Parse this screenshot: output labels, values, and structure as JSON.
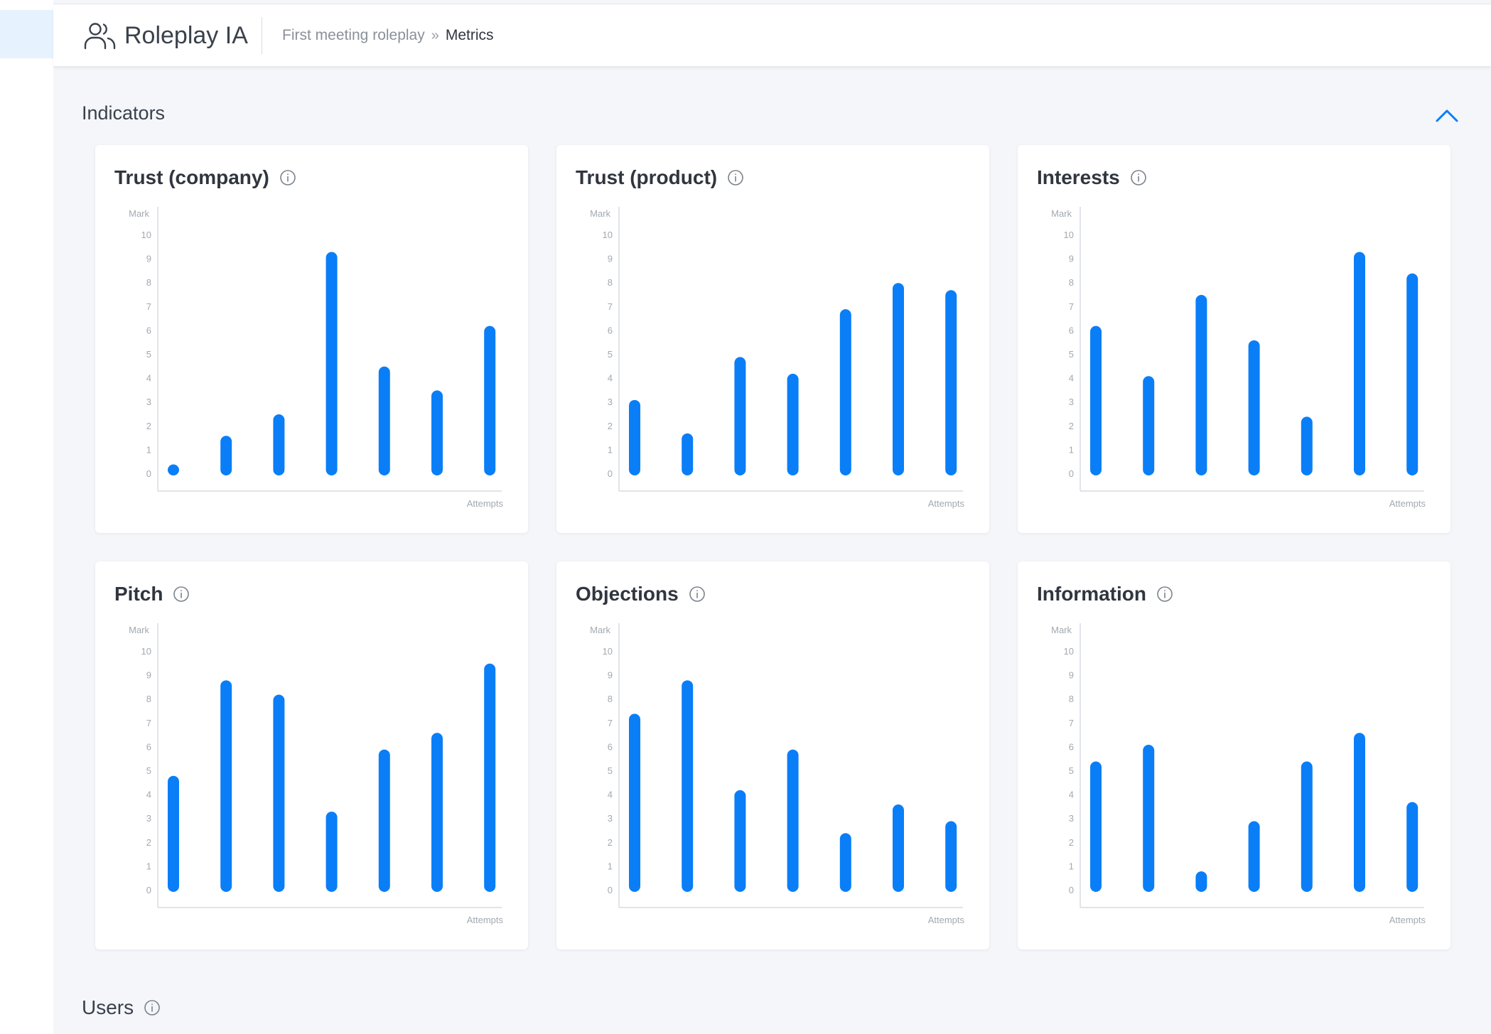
{
  "app": {
    "name": "Roleplay IA",
    "icon": "users-icon"
  },
  "breadcrumb": {
    "parent": "First meeting roleplay",
    "separator": "»",
    "current": "Metrics"
  },
  "sections": {
    "indicators": {
      "title": "Indicators",
      "toggle_icon": "chevron-up-icon"
    },
    "users": {
      "title": "Users"
    }
  },
  "colors": {
    "accent": "#0a7ef7",
    "bar": "#0a7ef7",
    "axis": "#d7dbe0",
    "tick_text": "#a3a8b0"
  },
  "charts": [
    {
      "title": "Trust (company)"
    },
    {
      "title": "Trust (product)"
    },
    {
      "title": "Interests"
    },
    {
      "title": "Pitch"
    },
    {
      "title": "Objections"
    },
    {
      "title": "Information"
    }
  ],
  "chart_data": [
    {
      "type": "bar",
      "title": "Trust (company)",
      "ylabel": "Mark",
      "xlabel": "Attempts",
      "ylim": [
        0,
        10
      ],
      "yticks": [
        0,
        1,
        2,
        3,
        4,
        5,
        6,
        7,
        8,
        9,
        10
      ],
      "values": [
        0.4,
        1.6,
        2.5,
        9.3,
        4.5,
        3.5,
        6.2
      ]
    },
    {
      "type": "bar",
      "title": "Trust (product)",
      "ylabel": "Mark",
      "xlabel": "Attempts",
      "ylim": [
        0,
        10
      ],
      "yticks": [
        0,
        1,
        2,
        3,
        4,
        5,
        6,
        7,
        8,
        9,
        10
      ],
      "values": [
        3.1,
        1.7,
        4.9,
        4.2,
        6.9,
        8.0,
        7.7
      ]
    },
    {
      "type": "bar",
      "title": "Interests",
      "ylabel": "Mark",
      "xlabel": "Attempts",
      "ylim": [
        0,
        10
      ],
      "yticks": [
        0,
        1,
        2,
        3,
        4,
        5,
        6,
        7,
        8,
        9,
        10
      ],
      "values": [
        6.2,
        4.1,
        7.5,
        5.6,
        2.4,
        9.3,
        8.4
      ]
    },
    {
      "type": "bar",
      "title": "Pitch",
      "ylabel": "Mark",
      "xlabel": "Attempts",
      "ylim": [
        0,
        10
      ],
      "yticks": [
        0,
        1,
        2,
        3,
        4,
        5,
        6,
        7,
        8,
        9,
        10
      ],
      "values": [
        4.8,
        8.8,
        8.2,
        3.3,
        5.9,
        6.6,
        9.5
      ]
    },
    {
      "type": "bar",
      "title": "Objections",
      "ylabel": "Mark",
      "xlabel": "Attempts",
      "ylim": [
        0,
        10
      ],
      "yticks": [
        0,
        1,
        2,
        3,
        4,
        5,
        6,
        7,
        8,
        9,
        10
      ],
      "values": [
        7.4,
        8.8,
        4.2,
        5.9,
        2.4,
        3.6,
        2.9
      ]
    },
    {
      "type": "bar",
      "title": "Information",
      "ylabel": "Mark",
      "xlabel": "Attempts",
      "ylim": [
        0,
        10
      ],
      "yticks": [
        0,
        1,
        2,
        3,
        4,
        5,
        6,
        7,
        8,
        9,
        10
      ],
      "values": [
        5.4,
        6.1,
        0.8,
        2.9,
        5.4,
        6.6,
        3.7
      ]
    }
  ]
}
